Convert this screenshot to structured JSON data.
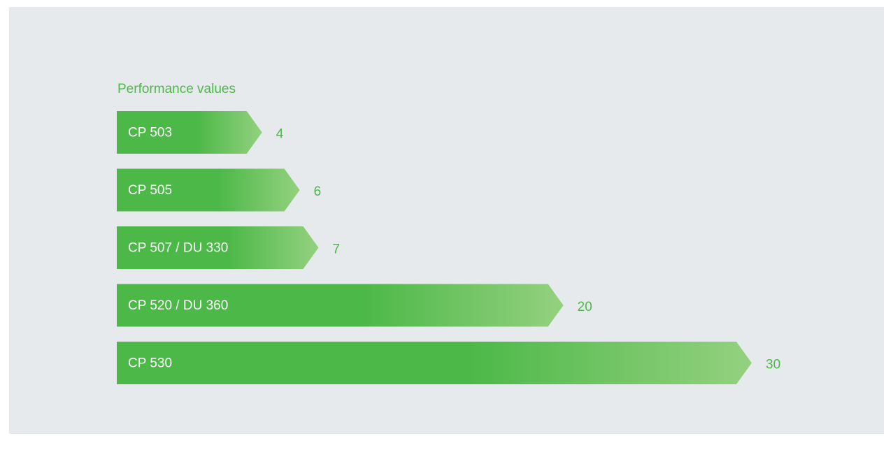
{
  "chart_data": {
    "type": "bar",
    "title": "Performance values",
    "categories": [
      "CP 503",
      "CP 505",
      "CP 507 / DU 330",
      "CP 520 / DU 360",
      "CP 530"
    ],
    "values": [
      4,
      6,
      7,
      20,
      30
    ],
    "color": "#4cb848"
  }
}
